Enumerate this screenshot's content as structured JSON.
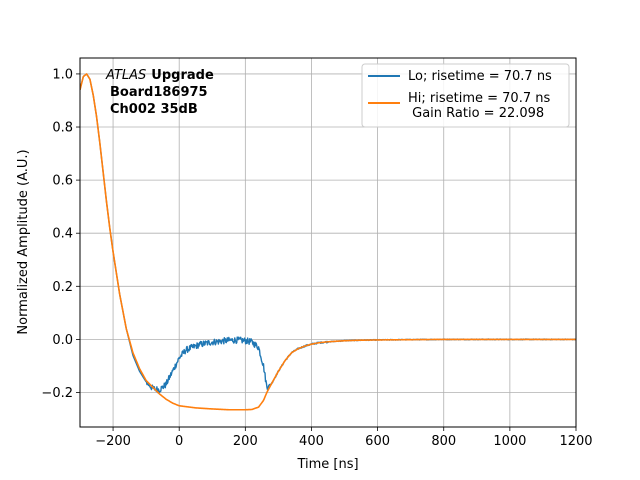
{
  "chart_data": {
    "type": "line",
    "xlabel": "Time [ns]",
    "ylabel": "Normalized Amplitude (A.U.)",
    "xlim": [
      -300,
      1200
    ],
    "ylim": [
      -0.33,
      1.06
    ],
    "xticks": [
      -200,
      0,
      200,
      400,
      600,
      800,
      1000,
      1200
    ],
    "xtick_labels": [
      "−200",
      "0",
      "200",
      "400",
      "600",
      "800",
      "1000",
      "1200"
    ],
    "yticks": [
      -0.2,
      0.0,
      0.2,
      0.4,
      0.6,
      0.8,
      1.0
    ],
    "ytick_labels": [
      "−0.2",
      "0.0",
      "0.2",
      "0.4",
      "0.6",
      "0.8",
      "1.0"
    ],
    "grid": true,
    "legend_placement": "top-right",
    "annotation": {
      "experiment_italic": "ATLAS",
      "experiment_bold": "Upgrade",
      "line2": "Board186975",
      "line3": "Ch002 35dB"
    },
    "series": [
      {
        "name": "Lo; risetime = 70.7 ns",
        "color": "#1f77b4",
        "noisy": true,
        "x": [
          -300,
          -290,
          -280,
          -270,
          -260,
          -250,
          -240,
          -230,
          -220,
          -210,
          -200,
          -180,
          -160,
          -140,
          -120,
          -100,
          -80,
          -60,
          -40,
          -20,
          0,
          20,
          40,
          60,
          80,
          100,
          120,
          140,
          160,
          180,
          200,
          220,
          240,
          255,
          265,
          280,
          300,
          320,
          340,
          360,
          380,
          400,
          420,
          450,
          500,
          550,
          600,
          700,
          800,
          900,
          1000,
          1100,
          1200
        ],
        "y": [
          0.94,
          0.99,
          1.0,
          0.98,
          0.92,
          0.84,
          0.74,
          0.63,
          0.52,
          0.42,
          0.33,
          0.17,
          0.04,
          -0.06,
          -0.12,
          -0.16,
          -0.185,
          -0.19,
          -0.17,
          -0.12,
          -0.07,
          -0.04,
          -0.03,
          -0.02,
          -0.015,
          -0.01,
          -0.008,
          -0.005,
          -0.003,
          -0.003,
          -0.005,
          -0.01,
          -0.03,
          -0.1,
          -0.18,
          -0.165,
          -0.12,
          -0.08,
          -0.05,
          -0.035,
          -0.025,
          -0.018,
          -0.013,
          -0.009,
          -0.005,
          -0.003,
          -0.002,
          -0.001,
          0.0,
          0.0,
          0.0,
          0.0,
          0.0
        ]
      },
      {
        "name": "Hi; risetime = 70.7 ns\n Gain Ratio = 22.098",
        "color": "#ff7f0e",
        "noisy": false,
        "x": [
          -300,
          -290,
          -280,
          -270,
          -260,
          -250,
          -240,
          -230,
          -220,
          -210,
          -200,
          -180,
          -160,
          -140,
          -120,
          -100,
          -80,
          -60,
          -40,
          -20,
          0,
          50,
          100,
          150,
          200,
          220,
          240,
          255,
          265,
          280,
          300,
          320,
          340,
          360,
          380,
          400,
          420,
          450,
          500,
          550,
          600,
          700,
          800,
          900,
          1000,
          1100,
          1200
        ],
        "y": [
          0.94,
          0.99,
          1.0,
          0.98,
          0.92,
          0.84,
          0.74,
          0.63,
          0.52,
          0.42,
          0.33,
          0.17,
          0.04,
          -0.05,
          -0.11,
          -0.155,
          -0.18,
          -0.205,
          -0.225,
          -0.24,
          -0.25,
          -0.258,
          -0.262,
          -0.265,
          -0.265,
          -0.264,
          -0.255,
          -0.23,
          -0.2,
          -0.165,
          -0.12,
          -0.08,
          -0.05,
          -0.035,
          -0.025,
          -0.018,
          -0.013,
          -0.009,
          -0.005,
          -0.003,
          -0.002,
          -0.001,
          0.0,
          0.0,
          0.0,
          0.0,
          0.0
        ]
      }
    ]
  }
}
